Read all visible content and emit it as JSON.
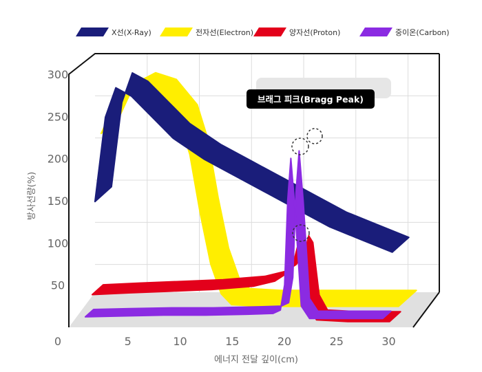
{
  "chart_data": {
    "type": "area",
    "title": "",
    "xlabel": "에너지 전달 깊이(cm)",
    "ylabel": "방사선량(%)",
    "x_ticks": [
      0,
      5,
      10,
      15,
      20,
      25,
      30
    ],
    "y_ticks": [
      300,
      250,
      200,
      150,
      100,
      50
    ],
    "xlim": [
      0,
      33
    ],
    "ylim": [
      0,
      300
    ],
    "grid": true,
    "legend_position": "top",
    "annotation": "브래그 피크(Bragg Peak)",
    "series": [
      {
        "name": "X선(X-Ray)",
        "color": "#1a1d7a",
        "x": [
          2.5,
          3.5,
          4.5,
          6,
          8,
          10,
          13,
          16,
          19,
          22,
          25,
          28,
          31
        ],
        "y": [
          150,
          250,
          285,
          275,
          250,
          225,
          200,
          180,
          160,
          140,
          120,
          105,
          90
        ]
      },
      {
        "name": "전자선(Electron)",
        "color": "#ffee00",
        "x": [
          2.5,
          4,
          6,
          8,
          10,
          11,
          12,
          13,
          14,
          15,
          18,
          22,
          26,
          31
        ],
        "y": [
          225,
          265,
          278,
          270,
          240,
          200,
          130,
          70,
          35,
          22,
          20,
          20,
          20,
          20
        ]
      },
      {
        "name": "양자선(Proton)",
        "color": "#e3001b",
        "x": [
          2.5,
          6,
          10,
          14,
          18,
          20,
          21,
          21.8,
          22.2,
          22.6,
          23.2,
          24,
          27,
          31
        ],
        "y": [
          42,
          44,
          46,
          48,
          52,
          58,
          66,
          80,
          100,
          92,
          30,
          12,
          10,
          10
        ]
      },
      {
        "name": "중이온(Carbon)",
        "color": "#8b2be2",
        "x": [
          2.5,
          6,
          10,
          14,
          18,
          20.5,
          21.2,
          21.6,
          21.9,
          22.2,
          22.6,
          23.2,
          24,
          27,
          31
        ],
        "y": [
          22,
          23,
          24,
          24,
          25,
          26,
          30,
          60,
          160,
          210,
          150,
          35,
          20,
          20,
          20
        ]
      }
    ]
  },
  "icons": {
    "peak_markers": "dashed-circle"
  }
}
